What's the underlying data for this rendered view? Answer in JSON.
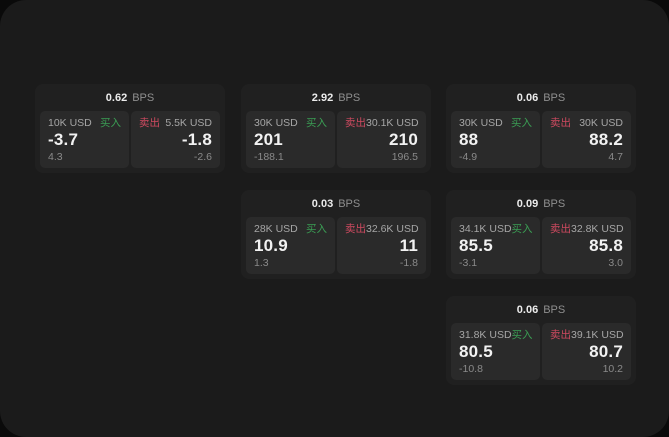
{
  "window": {
    "bps_unit": "BPS"
  },
  "labels": {
    "buy": "买入",
    "sell": "卖出"
  },
  "colors": {
    "backdrop": "#0a0a0a",
    "surface": "#1b1b1b",
    "card": "#202020",
    "tile": "#2a2a2a",
    "buy_green": "#3b9e54",
    "sell_red": "#cf4a60"
  },
  "cards": [
    {
      "bps": "0.62",
      "buy": {
        "amount": "10K USD",
        "value": "-3.7",
        "delta": "4.3"
      },
      "sell": {
        "amount": "5.5K USD",
        "value": "-1.8",
        "delta": "-2.6"
      }
    },
    {
      "bps": "2.92",
      "buy": {
        "amount": "30K USD",
        "value": "201",
        "delta": "-188.1"
      },
      "sell": {
        "amount": "30.1K USD",
        "value": "210",
        "delta": "196.5"
      }
    },
    {
      "bps": "0.06",
      "buy": {
        "amount": "30K USD",
        "value": "88",
        "delta": "-4.9"
      },
      "sell": {
        "amount": "30K USD",
        "value": "88.2",
        "delta": "4.7"
      }
    },
    {
      "bps": "0.03",
      "buy": {
        "amount": "28K USD",
        "value": "10.9",
        "delta": "1.3"
      },
      "sell": {
        "amount": "32.6K USD",
        "value": "11",
        "delta": "-1.8"
      }
    },
    {
      "bps": "0.09",
      "buy": {
        "amount": "34.1K USD",
        "value": "85.5",
        "delta": "-3.1"
      },
      "sell": {
        "amount": "32.8K USD",
        "value": "85.8",
        "delta": "3.0"
      }
    },
    {
      "bps": "0.06",
      "buy": {
        "amount": "31.8K USD",
        "value": "80.5",
        "delta": "-10.8"
      },
      "sell": {
        "amount": "39.1K USD",
        "value": "80.7",
        "delta": "10.2"
      }
    }
  ]
}
